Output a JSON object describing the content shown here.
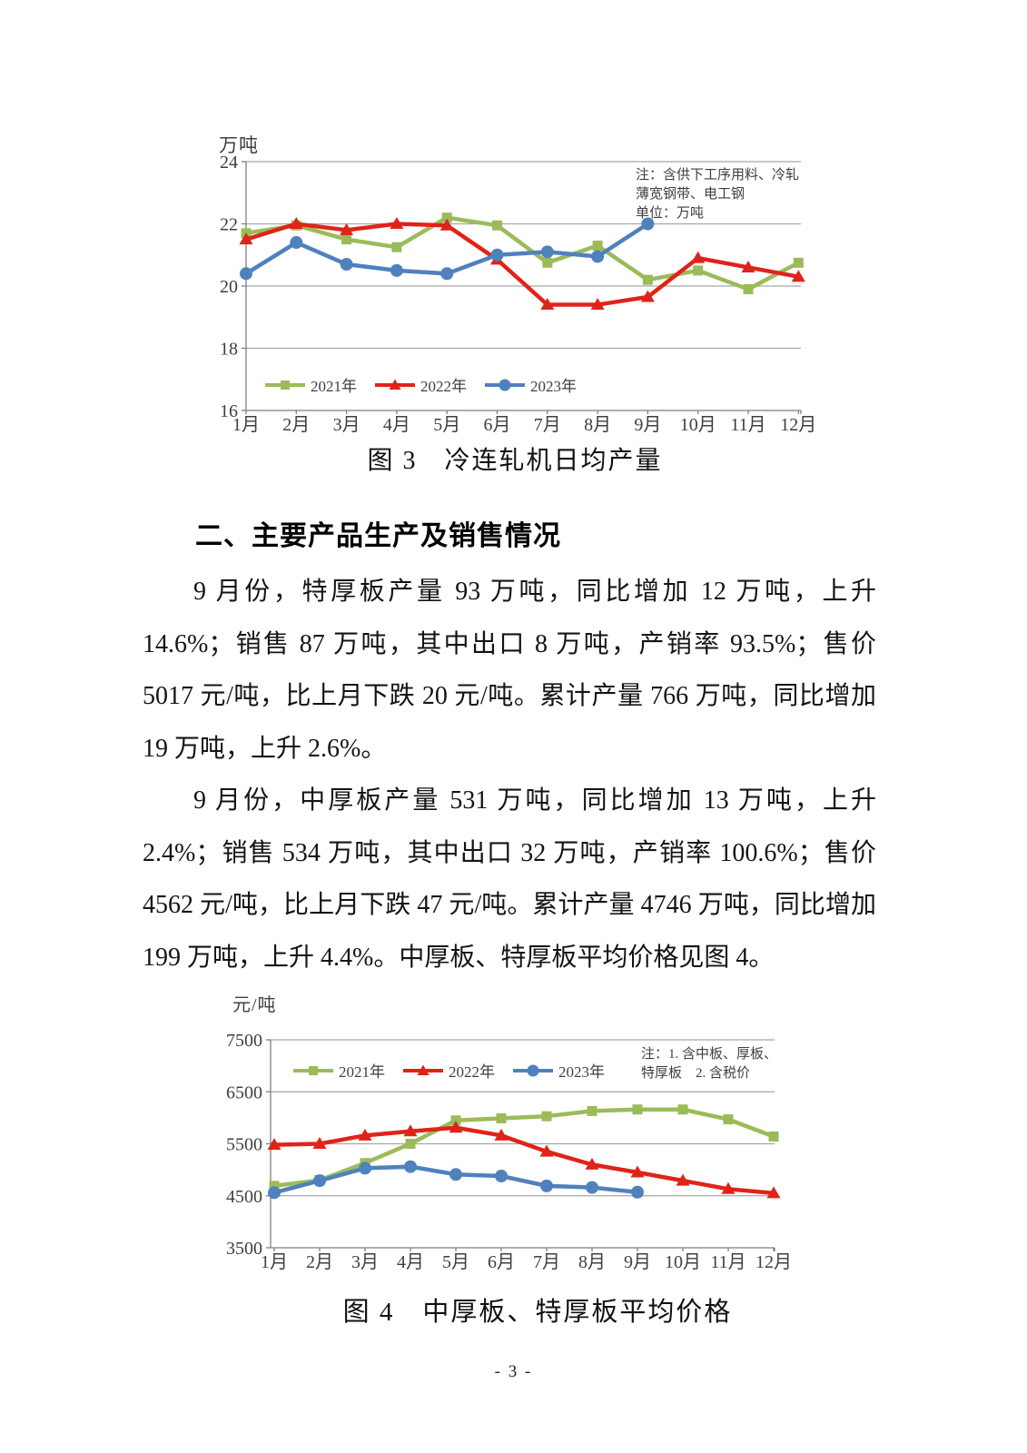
{
  "heading": "二、主要产品生产及销售情况",
  "paragraphs": {
    "p1": "9 月份，特厚板产量 93 万吨，同比增加 12 万吨，上升 14.6%；销售 87 万吨，其中出口 8 万吨，产销率 93.5%；售价 5017 元/吨，比上月下跌 20 元/吨。累计产量 766 万吨，同比增加 19 万吨，上升 2.6%。",
    "p2": "9 月份，中厚板产量 531 万吨，同比增加 13 万吨，上升 2.4%；销售 534 万吨，其中出口 32 万吨，产销率 100.6%；售价 4562 元/吨，比上月下跌 47 元/吨。累计产量 4746 万吨，同比增加 199 万吨，上升 4.4%。中厚板、特厚板平均价格见图 4。"
  },
  "page_number": "- 3 -",
  "colors": {
    "green_2021": "#9BBB59",
    "red_2022": "#E02318",
    "blue_2023": "#4F81BD",
    "grid": "#A6A6A6",
    "axis": "#7F7F7F"
  },
  "chart_data": [
    {
      "type": "line",
      "caption": "图 3　冷连轧机日均产量",
      "ylabel": "万吨",
      "ylim": [
        16,
        24
      ],
      "yticks": [
        24,
        22,
        20,
        18,
        16
      ],
      "grid": true,
      "legend_position": "inside-bottom-left",
      "note_lines": [
        "注：含供下工序用料、冷轧",
        "薄宽钢带、电工钢",
        "单位：万吨"
      ],
      "categories": [
        "1月",
        "2月",
        "3月",
        "4月",
        "5月",
        "6月",
        "7月",
        "8月",
        "9月",
        "10月",
        "11月",
        "12月"
      ],
      "series": [
        {
          "name": "2021年",
          "color": "#9BBB59",
          "marker": "square",
          "values": [
            21.7,
            21.95,
            21.5,
            21.25,
            22.2,
            21.95,
            20.75,
            21.3,
            20.2,
            20.5,
            19.9,
            20.75
          ]
        },
        {
          "name": "2022年",
          "color": "#E02318",
          "marker": "triangle",
          "values": [
            21.5,
            22.0,
            21.8,
            22.0,
            21.95,
            20.85,
            19.4,
            19.4,
            19.65,
            20.9,
            20.6,
            20.3
          ]
        },
        {
          "name": "2023年",
          "color": "#4F81BD",
          "marker": "circle",
          "values": [
            20.4,
            21.4,
            20.7,
            20.5,
            20.4,
            21.0,
            21.1,
            20.95,
            22.0,
            null,
            null,
            null
          ]
        }
      ]
    },
    {
      "type": "line",
      "caption": "图 4　中厚板、特厚板平均价格",
      "ylabel": "元/吨",
      "ylim": [
        3500,
        7500
      ],
      "yticks": [
        7500,
        6500,
        5500,
        4500,
        3500
      ],
      "grid": true,
      "legend_position": "inside-top-left",
      "note_lines": [
        "注：1. 含中板、厚板、",
        "特厚板　2. 含税价"
      ],
      "categories": [
        "1月",
        "2月",
        "3月",
        "4月",
        "5月",
        "6月",
        "7月",
        "8月",
        "9月",
        "10月",
        "11月",
        "12月"
      ],
      "series": [
        {
          "name": "2021年",
          "color": "#9BBB59",
          "marker": "square",
          "values": [
            4690,
            4800,
            5130,
            5500,
            5950,
            5990,
            6030,
            6130,
            6160,
            6160,
            5970,
            5640
          ]
        },
        {
          "name": "2022年",
          "color": "#E02318",
          "marker": "triangle",
          "values": [
            5480,
            5500,
            5660,
            5740,
            5810,
            5660,
            5350,
            5100,
            4950,
            4790,
            4630,
            4550
          ]
        },
        {
          "name": "2023年",
          "color": "#4F81BD",
          "marker": "circle",
          "values": [
            4560,
            4790,
            5030,
            5060,
            4910,
            4880,
            4690,
            4660,
            4570,
            null,
            null,
            null
          ]
        }
      ]
    }
  ]
}
